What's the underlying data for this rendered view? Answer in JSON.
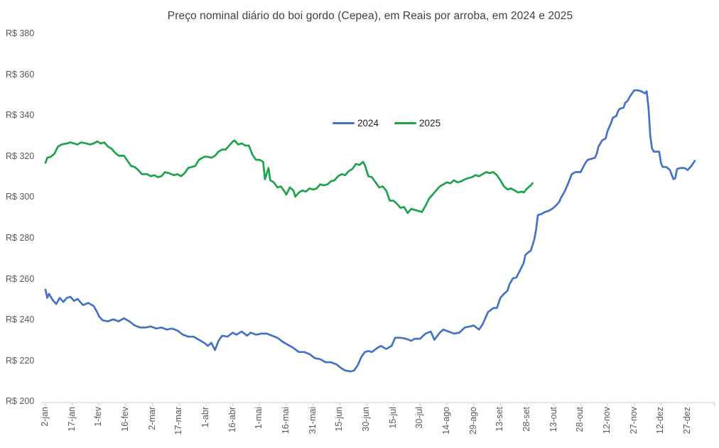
{
  "chart_data": {
    "type": "line",
    "title": "Preço nominal diário do boi gordo (Cepea), em Reais por arroba, em 2024 e 2025",
    "ylabel": "",
    "xlabel": "",
    "y_tick_prefix": "R$ ",
    "y_ticks": [
      200,
      220,
      240,
      260,
      280,
      300,
      320,
      340,
      360,
      380
    ],
    "ylim": [
      200,
      380
    ],
    "grid": false,
    "legend_position": "top-center-inside",
    "axis_color": "#d6d6d6",
    "tick_label_color": "#595959",
    "title_color": "#404040",
    "x_tick_labels": [
      "2-jan",
      "17-jan",
      "1-fev",
      "16-fev",
      "2-mar",
      "17-mar",
      "1-abr",
      "16-abr",
      "1-mai",
      "16-mai",
      "31-mai",
      "15-jun",
      "30-jun",
      "15-jul",
      "30-jul",
      "14-ago",
      "29-ago",
      "13-set",
      "28-set",
      "13-out",
      "28-out",
      "12-nov",
      "27-nov",
      "12-dez",
      "27-dez"
    ],
    "x_tick_days": [
      0,
      15,
      30,
      45,
      60,
      75,
      90,
      105,
      120,
      135,
      150,
      165,
      180,
      195,
      210,
      225,
      240,
      255,
      270,
      285,
      300,
      315,
      330,
      345,
      360
    ],
    "x_unit": "days-since-2-jan",
    "series": [
      {
        "name": "2024",
        "color": "#4472c4",
        "points": [
          [
            0,
            255
          ],
          [
            1,
            251
          ],
          [
            2,
            253
          ],
          [
            4,
            250
          ],
          [
            6,
            248
          ],
          [
            8,
            251
          ],
          [
            10,
            249
          ],
          [
            12,
            251
          ],
          [
            14,
            251.5
          ],
          [
            16,
            249.5
          ],
          [
            18,
            250.5
          ],
          [
            21,
            247.5
          ],
          [
            24,
            248.5
          ],
          [
            27,
            247
          ],
          [
            29,
            244
          ],
          [
            30,
            242
          ],
          [
            32,
            240
          ],
          [
            35,
            239.5
          ],
          [
            38,
            240.5
          ],
          [
            41,
            239.5
          ],
          [
            44,
            241
          ],
          [
            47,
            239.5
          ],
          [
            50,
            237.5
          ],
          [
            53,
            236.5
          ],
          [
            56,
            236.5
          ],
          [
            59,
            237
          ],
          [
            62,
            236
          ],
          [
            65,
            236.5
          ],
          [
            68,
            235.5
          ],
          [
            71,
            236
          ],
          [
            74,
            235
          ],
          [
            77,
            233
          ],
          [
            80,
            232
          ],
          [
            83,
            232
          ],
          [
            86,
            230.5
          ],
          [
            89,
            229
          ],
          [
            91,
            227.5
          ],
          [
            93,
            229
          ],
          [
            95,
            225.5
          ],
          [
            97,
            230
          ],
          [
            99,
            232.5
          ],
          [
            102,
            232
          ],
          [
            105,
            234
          ],
          [
            107,
            233
          ],
          [
            110,
            234.5
          ],
          [
            113,
            232.5
          ],
          [
            115,
            234
          ],
          [
            118,
            233
          ],
          [
            121,
            233.5
          ],
          [
            124,
            233.5
          ],
          [
            127,
            232.5
          ],
          [
            130,
            231.5
          ],
          [
            133,
            229.5
          ],
          [
            136,
            228
          ],
          [
            139,
            226.5
          ],
          [
            142,
            224.5
          ],
          [
            145,
            224.5
          ],
          [
            148,
            223.5
          ],
          [
            151,
            221.5
          ],
          [
            154,
            221
          ],
          [
            157,
            219.5
          ],
          [
            160,
            219.5
          ],
          [
            163,
            218.5
          ],
          [
            166,
            216.5
          ],
          [
            168,
            215.5
          ],
          [
            171,
            215
          ],
          [
            173,
            215.5
          ],
          [
            175,
            218
          ],
          [
            177,
            222
          ],
          [
            179,
            224.5
          ],
          [
            181,
            225
          ],
          [
            183,
            224.5
          ],
          [
            186,
            226.5
          ],
          [
            188,
            227.5
          ],
          [
            191,
            226
          ],
          [
            194,
            227.5
          ],
          [
            196,
            231.5
          ],
          [
            199,
            231.5
          ],
          [
            202,
            231
          ],
          [
            205,
            230
          ],
          [
            207,
            231
          ],
          [
            210,
            231
          ],
          [
            213,
            233.5
          ],
          [
            216,
            234.5
          ],
          [
            218,
            230.5
          ],
          [
            221,
            234
          ],
          [
            223,
            235.5
          ],
          [
            226,
            234.5
          ],
          [
            229,
            233.5
          ],
          [
            232,
            234
          ],
          [
            235,
            236.5
          ],
          [
            238,
            237
          ],
          [
            240,
            237.5
          ],
          [
            243,
            235.5
          ],
          [
            245,
            238
          ],
          [
            248,
            244
          ],
          [
            251,
            246
          ],
          [
            253,
            246
          ],
          [
            255,
            251
          ],
          [
            257,
            253
          ],
          [
            259,
            254.5
          ],
          [
            260,
            257.5
          ],
          [
            262,
            260.5
          ],
          [
            264,
            261
          ],
          [
            266,
            264.5
          ],
          [
            268,
            268
          ],
          [
            269,
            272
          ],
          [
            271,
            273.5
          ],
          [
            272,
            274
          ],
          [
            274,
            279.5
          ],
          [
            275,
            284.5
          ],
          [
            276,
            291.5
          ],
          [
            278,
            292
          ],
          [
            280,
            293
          ],
          [
            282,
            293.5
          ],
          [
            284,
            294.5
          ],
          [
            286,
            296
          ],
          [
            288,
            298
          ],
          [
            289,
            300
          ],
          [
            291,
            303
          ],
          [
            293,
            307
          ],
          [
            295,
            311.5
          ],
          [
            297,
            312.5
          ],
          [
            300,
            312.5
          ],
          [
            302,
            316
          ],
          [
            303,
            317.5
          ],
          [
            304,
            318.5
          ],
          [
            306,
            319
          ],
          [
            308,
            319.5
          ],
          [
            309,
            321.5
          ],
          [
            310,
            325
          ],
          [
            312,
            328
          ],
          [
            314,
            329
          ],
          [
            315,
            332.5
          ],
          [
            317,
            336.5
          ],
          [
            318,
            339
          ],
          [
            320,
            340
          ],
          [
            321,
            342.5
          ],
          [
            322,
            343.5
          ],
          [
            324,
            344
          ],
          [
            325,
            346.5
          ],
          [
            326,
            347
          ],
          [
            328,
            350
          ],
          [
            330,
            352.5
          ],
          [
            332,
            352.5
          ],
          [
            334,
            352
          ],
          [
            336,
            351
          ],
          [
            337,
            352
          ],
          [
            338,
            344
          ],
          [
            339,
            330
          ],
          [
            340,
            324
          ],
          [
            341,
            322.5
          ],
          [
            344,
            322.5
          ],
          [
            345,
            317
          ],
          [
            346,
            315
          ],
          [
            348,
            315
          ],
          [
            350,
            313.5
          ],
          [
            352,
            309
          ],
          [
            353,
            309.5
          ],
          [
            354,
            314
          ],
          [
            356,
            314.5
          ],
          [
            358,
            314.5
          ],
          [
            360,
            313.5
          ],
          [
            362,
            315.5
          ],
          [
            364,
            318
          ]
        ]
      },
      {
        "name": "2025",
        "color": "#1ea34c",
        "points": [
          [
            0,
            317
          ],
          [
            1,
            319.5
          ],
          [
            3,
            320
          ],
          [
            5,
            321.5
          ],
          [
            7,
            325
          ],
          [
            9,
            326
          ],
          [
            12,
            326.5
          ],
          [
            14,
            327
          ],
          [
            16,
            326.5
          ],
          [
            18,
            326
          ],
          [
            20,
            327
          ],
          [
            23,
            326.5
          ],
          [
            25,
            326
          ],
          [
            27,
            326.5
          ],
          [
            29,
            327.5
          ],
          [
            31,
            326.5
          ],
          [
            33,
            327
          ],
          [
            35,
            325
          ],
          [
            37,
            324
          ],
          [
            39,
            322
          ],
          [
            41,
            320.5
          ],
          [
            44,
            320.5
          ],
          [
            46,
            318
          ],
          [
            48,
            315.5
          ],
          [
            50,
            315
          ],
          [
            52,
            313.5
          ],
          [
            54,
            311.5
          ],
          [
            57,
            311.5
          ],
          [
            59,
            310.5
          ],
          [
            61,
            311
          ],
          [
            63,
            310
          ],
          [
            65,
            310.5
          ],
          [
            67,
            312.5
          ],
          [
            69,
            312
          ],
          [
            72,
            311
          ],
          [
            74,
            311.5
          ],
          [
            76,
            310.5
          ],
          [
            78,
            312
          ],
          [
            80,
            314.5
          ],
          [
            82,
            315
          ],
          [
            84,
            315.5
          ],
          [
            86,
            318.5
          ],
          [
            89,
            320
          ],
          [
            91,
            320
          ],
          [
            93,
            319.5
          ],
          [
            95,
            320.5
          ],
          [
            97,
            322.5
          ],
          [
            99,
            323.5
          ],
          [
            101,
            323.5
          ],
          [
            103,
            325.5
          ],
          [
            105,
            327.5
          ],
          [
            106,
            328
          ],
          [
            108,
            326
          ],
          [
            110,
            326.5
          ],
          [
            112,
            325.5
          ],
          [
            114,
            325.5
          ],
          [
            116,
            321
          ],
          [
            118,
            318.5
          ],
          [
            120,
            318.5
          ],
          [
            122,
            317.5
          ],
          [
            123,
            309
          ],
          [
            125,
            314.5
          ],
          [
            126,
            308.5
          ],
          [
            128,
            307.5
          ],
          [
            130,
            305
          ],
          [
            132,
            305.5
          ],
          [
            134,
            303
          ],
          [
            135,
            301.5
          ],
          [
            137,
            305
          ],
          [
            139,
            303.5
          ],
          [
            140,
            300.5
          ],
          [
            142,
            302.5
          ],
          [
            144,
            303.5
          ],
          [
            146,
            303
          ],
          [
            148,
            304.5
          ],
          [
            150,
            304
          ],
          [
            152,
            304.5
          ],
          [
            154,
            306.5
          ],
          [
            156,
            306
          ],
          [
            158,
            306.5
          ],
          [
            160,
            308
          ],
          [
            162,
            308.5
          ],
          [
            164,
            310.5
          ],
          [
            166,
            311.5
          ],
          [
            168,
            311
          ],
          [
            170,
            313
          ],
          [
            172,
            314
          ],
          [
            174,
            316.5
          ],
          [
            176,
            316
          ],
          [
            178,
            317.5
          ],
          [
            179,
            316
          ],
          [
            181,
            310.5
          ],
          [
            183,
            310
          ],
          [
            185,
            307.5
          ],
          [
            187,
            305
          ],
          [
            189,
            305.5
          ],
          [
            191,
            303.5
          ],
          [
            193,
            298.5
          ],
          [
            195,
            298.5
          ],
          [
            197,
            297
          ],
          [
            199,
            295
          ],
          [
            201,
            295.5
          ],
          [
            203,
            292.5
          ],
          [
            205,
            294.5
          ],
          [
            207,
            294
          ],
          [
            209,
            293.5
          ],
          [
            211,
            293
          ],
          [
            213,
            296
          ],
          [
            215,
            299.5
          ],
          [
            217,
            301.5
          ],
          [
            219,
            303.5
          ],
          [
            221,
            305.5
          ],
          [
            223,
            306.5
          ],
          [
            225,
            307.5
          ],
          [
            227,
            307
          ],
          [
            229,
            308.5
          ],
          [
            231,
            307.5
          ],
          [
            233,
            308
          ],
          [
            235,
            309
          ],
          [
            237,
            309.5
          ],
          [
            239,
            310
          ],
          [
            241,
            311
          ],
          [
            243,
            310.5
          ],
          [
            245,
            311.5
          ],
          [
            247,
            312.5
          ],
          [
            249,
            312
          ],
          [
            251,
            312.5
          ],
          [
            253,
            311
          ],
          [
            255,
            308.5
          ],
          [
            257,
            305.5
          ],
          [
            259,
            304
          ],
          [
            261,
            304.5
          ],
          [
            263,
            303.5
          ],
          [
            265,
            302.5
          ],
          [
            267,
            303
          ],
          [
            268,
            302.5
          ],
          [
            270,
            304.5
          ],
          [
            272,
            306
          ],
          [
            273,
            307
          ]
        ]
      }
    ]
  }
}
